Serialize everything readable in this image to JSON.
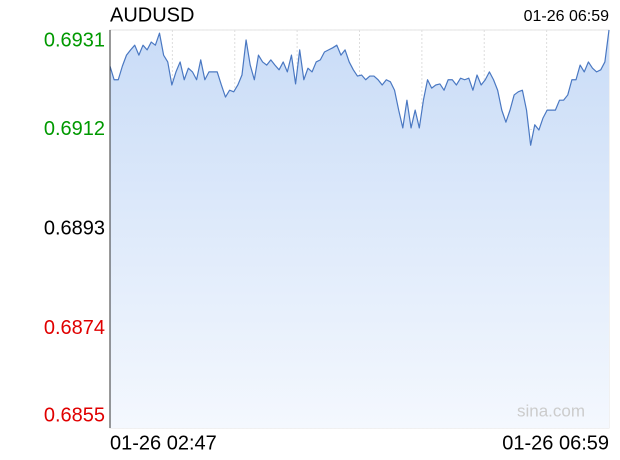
{
  "chart_data": {
    "type": "line",
    "title": "AUDUSD",
    "timestamp": "01-26 06:59",
    "x_start_label": "01-26 02:47",
    "x_end_label": "01-26 06:59",
    "watermark": "sina.com",
    "ylim": [
      0.6855,
      0.6931
    ],
    "yticks": [
      0.6931,
      0.6912,
      0.6893,
      0.6874,
      0.6855
    ],
    "ytick_colors": [
      "#009900",
      "#009900",
      "#000000",
      "#e00000",
      "#e00000"
    ],
    "grid": true,
    "series": [
      {
        "name": "AUDUSD",
        "color": "#4a78c2",
        "values": [
          0.69241,
          0.69215,
          0.69215,
          0.69241,
          0.69262,
          0.69272,
          0.69281,
          0.69262,
          0.69281,
          0.69272,
          0.69287,
          0.69281,
          0.69304,
          0.69262,
          0.69249,
          0.69205,
          0.6923,
          0.69249,
          0.69215,
          0.69237,
          0.6923,
          0.69215,
          0.69253,
          0.69215,
          0.6923,
          0.6923,
          0.6923,
          0.69205,
          0.69182,
          0.69195,
          0.69192,
          0.69205,
          0.69224,
          0.69291,
          0.69243,
          0.69215,
          0.69262,
          0.69249,
          0.69243,
          0.69253,
          0.69243,
          0.69234,
          0.69249,
          0.6923,
          0.69262,
          0.69207,
          0.69272,
          0.69215,
          0.69237,
          0.6923,
          0.69249,
          0.69253,
          0.69268,
          0.69272,
          0.69276,
          0.69281,
          0.69262,
          0.69272,
          0.69249,
          0.69234,
          0.69222,
          0.69224,
          0.69215,
          0.69222,
          0.69222,
          0.69215,
          0.69205,
          0.69215,
          0.69211,
          0.69195,
          0.69157,
          0.69123,
          0.69176,
          0.69123,
          0.69157,
          0.69123,
          0.69176,
          0.69215,
          0.69199,
          0.69205,
          0.69207,
          0.69195,
          0.69215,
          0.69215,
          0.69205,
          0.69218,
          0.69215,
          0.69218,
          0.69195,
          0.69224,
          0.69205,
          0.69215,
          0.6923,
          0.69215,
          0.69195,
          0.69157,
          0.69134,
          0.69157,
          0.69186,
          0.69192,
          0.69195,
          0.69157,
          0.6909,
          0.69129,
          0.69119,
          0.69142,
          0.69157,
          0.69157,
          0.69157,
          0.69176,
          0.69176,
          0.69186,
          0.69215,
          0.69215,
          0.69243,
          0.6923,
          0.69249,
          0.69237,
          0.6923,
          0.69234,
          0.69249,
          0.6931
        ]
      }
    ]
  }
}
